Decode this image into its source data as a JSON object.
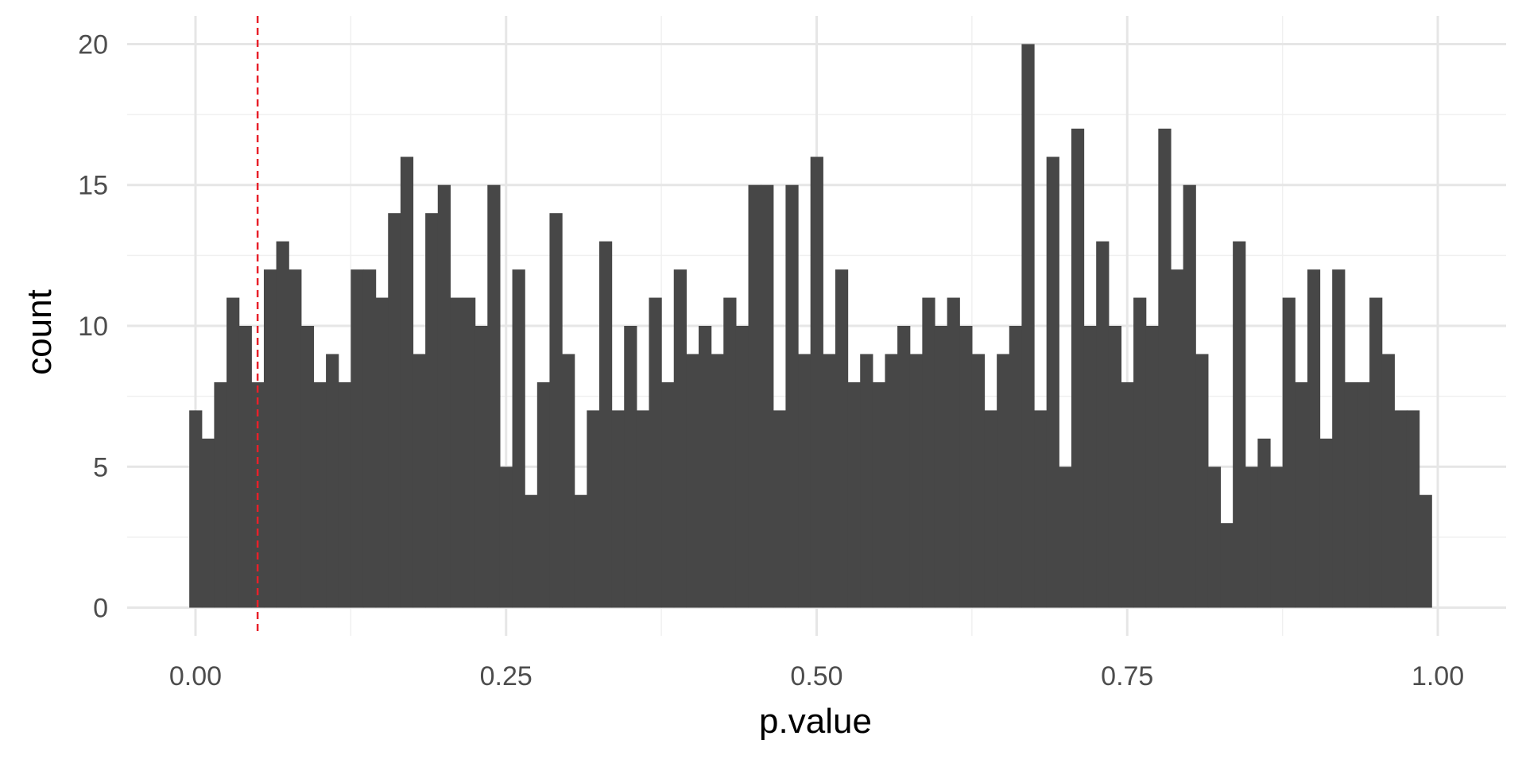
{
  "chart_data": {
    "type": "bar",
    "subtype": "histogram",
    "bins": 100,
    "bin_start": -0.005,
    "bin_width": 0.01,
    "values": [
      7,
      6,
      8,
      11,
      10,
      8,
      12,
      13,
      12,
      10,
      8,
      9,
      8,
      12,
      12,
      11,
      14,
      16,
      9,
      14,
      15,
      11,
      11,
      10,
      15,
      5,
      12,
      4,
      8,
      14,
      9,
      4,
      7,
      13,
      7,
      10,
      7,
      11,
      8,
      12,
      9,
      10,
      9,
      11,
      10,
      15,
      15,
      7,
      15,
      9,
      16,
      9,
      12,
      8,
      9,
      8,
      9,
      10,
      9,
      11,
      10,
      11,
      10,
      9,
      7,
      9,
      10,
      20,
      7,
      16,
      5,
      17,
      10,
      13,
      10,
      8,
      11,
      10,
      17,
      12,
      15,
      9,
      5,
      3,
      13,
      5,
      6,
      5,
      11,
      8,
      12,
      6,
      12,
      8,
      8,
      11,
      9,
      7,
      7,
      4
    ],
    "xlabel": "p.value",
    "ylabel": "count",
    "xlim": [
      -0.055,
      1.055
    ],
    "ylim": [
      -1,
      21
    ],
    "x_ticks": [
      0,
      0.25,
      0.5,
      0.75,
      1
    ],
    "x_tick_labels": [
      "0.00",
      "0.25",
      "0.50",
      "0.75",
      "1.00"
    ],
    "y_ticks": [
      0,
      5,
      10,
      15,
      20
    ],
    "y_tick_labels": [
      "0",
      "5",
      "10",
      "15",
      "20"
    ],
    "reference_line": {
      "x": 0.05,
      "color": "#e8202a",
      "style": "dashed"
    },
    "bar_color": "#474747",
    "grid": true
  }
}
